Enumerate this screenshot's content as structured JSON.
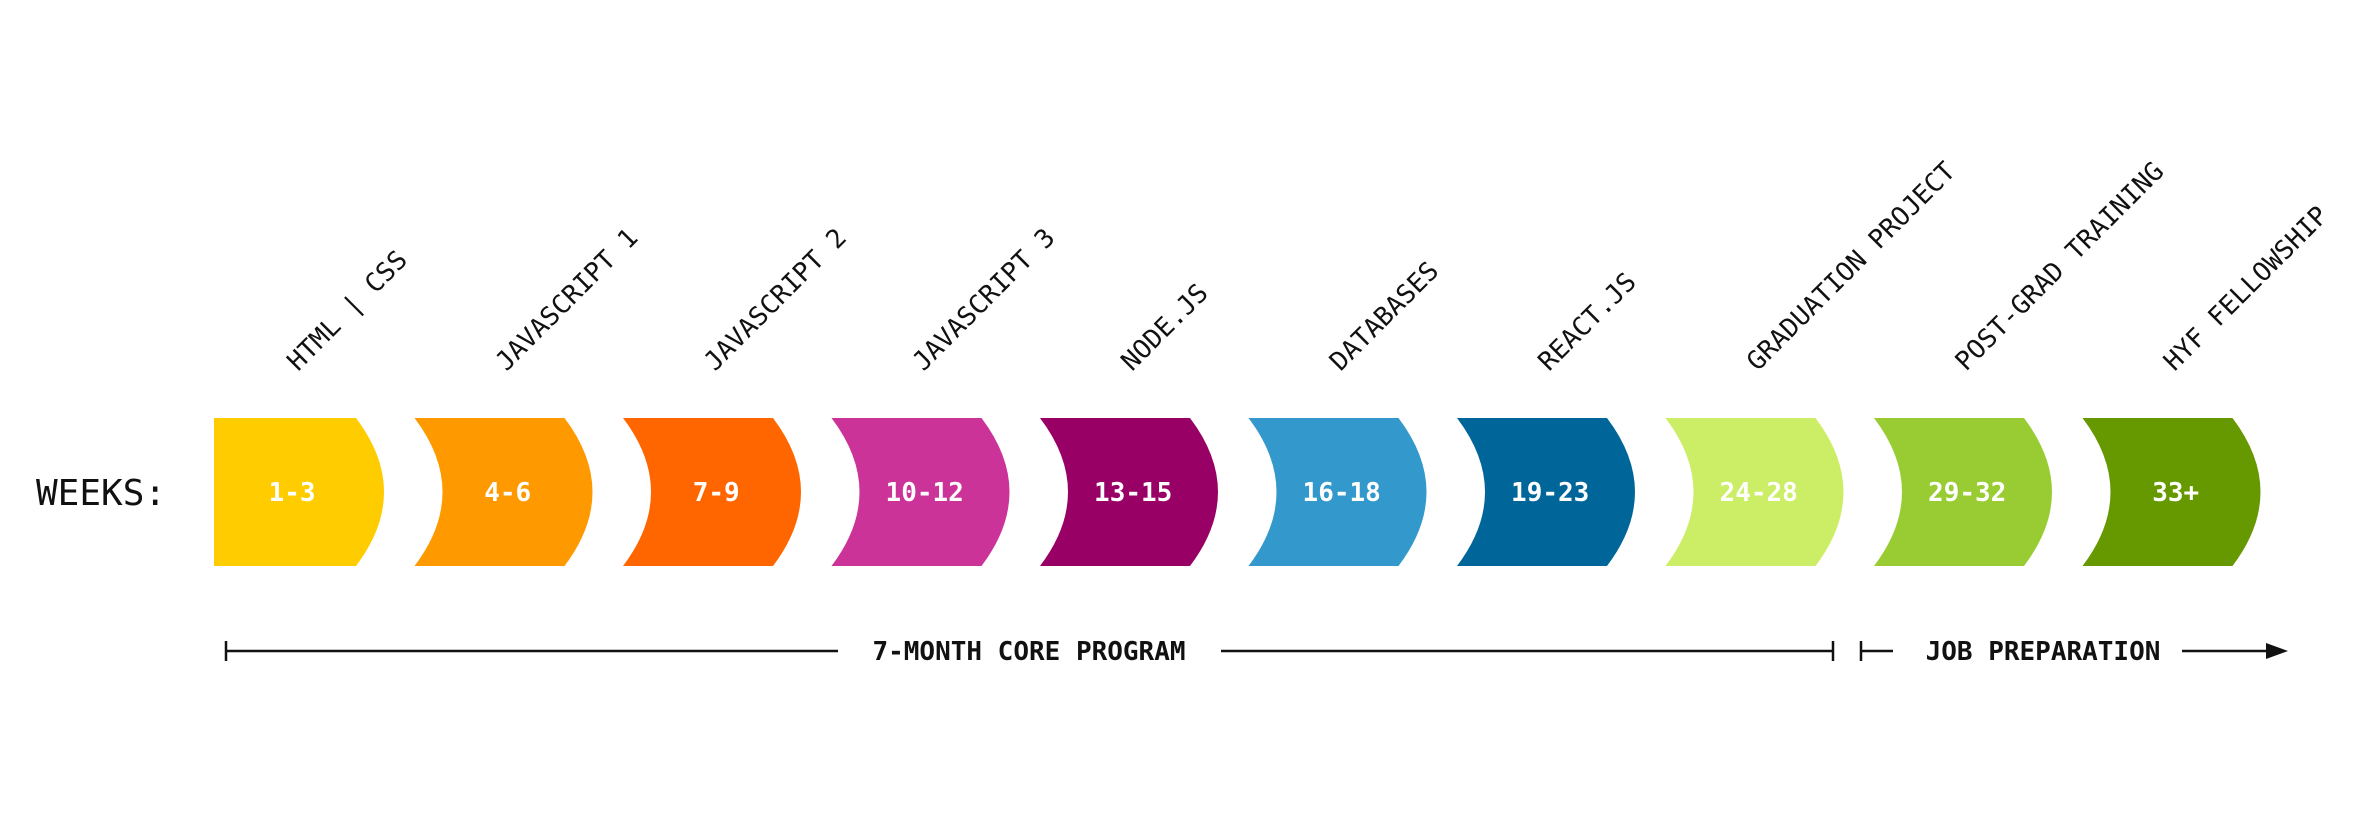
{
  "weeks_label": "WEEKS:",
  "modules": [
    {
      "topic": "HTML | CSS",
      "weeks": "1-3",
      "color": "#FFCC00"
    },
    {
      "topic": "JAVASCRIPT 1",
      "weeks": "4-6",
      "color": "#FF9900"
    },
    {
      "topic": "JAVASCRIPT 2",
      "weeks": "7-9",
      "color": "#FF6600"
    },
    {
      "topic": "JAVASCRIPT 3",
      "weeks": "10-12",
      "color": "#CC3399"
    },
    {
      "topic": "NODE.JS",
      "weeks": "13-15",
      "color": "#990066"
    },
    {
      "topic": "DATABASES",
      "weeks": "16-18",
      "color": "#3399CC"
    },
    {
      "topic": "REACT.JS",
      "weeks": "19-23",
      "color": "#006699"
    },
    {
      "topic": "GRADUATION PROJECT",
      "weeks": "24-28",
      "color": "#CCEE66"
    },
    {
      "topic": "POST-GRAD TRAINING",
      "weeks": "29-32",
      "color": "#99CC33"
    },
    {
      "topic": "HYF FELLOWSHIP",
      "weeks": "33+",
      "color": "#669900"
    }
  ],
  "phases": {
    "core": "7-MONTH CORE PROGRAM",
    "job": "JOB PREPARATION"
  }
}
